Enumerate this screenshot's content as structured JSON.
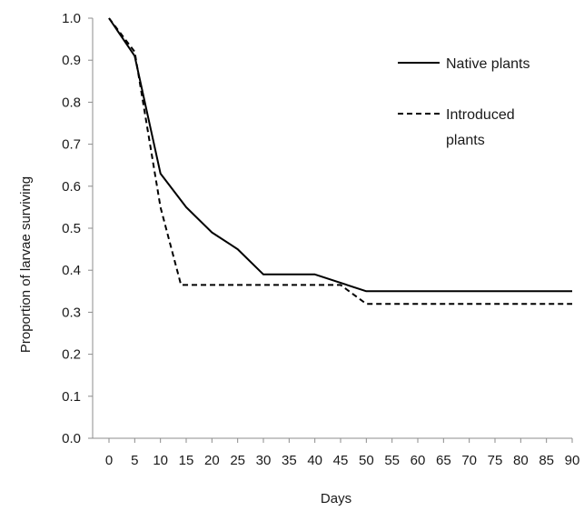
{
  "chart_data": {
    "type": "line",
    "title": "",
    "xlabel": "Days",
    "ylabel": "Proportion of larvae surviving",
    "xlim": [
      0,
      90
    ],
    "ylim": [
      0,
      1.0
    ],
    "x_ticks": [
      "0",
      "5",
      "10",
      "15",
      "20",
      "25",
      "30",
      "35",
      "40",
      "45",
      "50",
      "55",
      "60",
      "65",
      "70",
      "75",
      "80",
      "85",
      "90"
    ],
    "y_ticks": [
      "0.0",
      "0.1",
      "0.2",
      "0.3",
      "0.4",
      "0.5",
      "0.6",
      "0.7",
      "0.8",
      "0.9",
      "1.0"
    ],
    "grid": false,
    "legend_position": "top-right",
    "series": [
      {
        "name": "Native plants",
        "style": "solid",
        "color": "#000000",
        "points": [
          [
            0,
            1.0
          ],
          [
            5,
            0.91
          ],
          [
            10,
            0.63
          ],
          [
            15,
            0.55
          ],
          [
            20,
            0.49
          ],
          [
            25,
            0.45
          ],
          [
            30,
            0.39
          ],
          [
            35,
            0.39
          ],
          [
            40,
            0.39
          ],
          [
            50,
            0.35
          ],
          [
            55,
            0.35
          ],
          [
            90,
            0.35
          ]
        ]
      },
      {
        "name": "Introduced plants",
        "legend_lines": [
          "Introduced",
          "plants"
        ],
        "style": "dashed",
        "color": "#000000",
        "points": [
          [
            0,
            1.0
          ],
          [
            5,
            0.92
          ],
          [
            10,
            0.55
          ],
          [
            14,
            0.365
          ],
          [
            15,
            0.365
          ],
          [
            20,
            0.365
          ],
          [
            45,
            0.365
          ],
          [
            50,
            0.32
          ],
          [
            55,
            0.32
          ],
          [
            90,
            0.32
          ]
        ]
      }
    ]
  }
}
